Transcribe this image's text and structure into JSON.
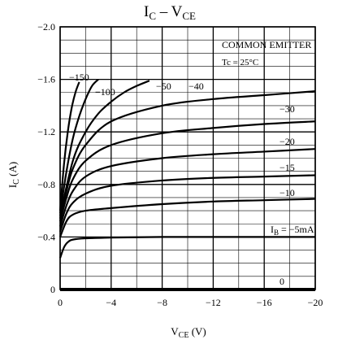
{
  "chart_data": {
    "type": "line",
    "title": "IC – VCE",
    "xlabel": "VCE (V)",
    "ylabel": "IC (A)",
    "xlim": [
      0,
      -20
    ],
    "ylim": [
      0,
      -2.0
    ],
    "x_ticks": [
      0,
      -4,
      -8,
      -12,
      -16,
      -20
    ],
    "x_tick_labels": [
      "0",
      "−4",
      "−8",
      "−12",
      "−16",
      "−20"
    ],
    "y_ticks": [
      -2.0,
      -1.6,
      -1.2,
      -0.8,
      -0.4,
      0
    ],
    "y_tick_labels": [
      "−2.0",
      "−1.6",
      "−1.2",
      "−0.8",
      "−0.4",
      "0"
    ],
    "grid": true,
    "annotations": {
      "box_line1": "COMMON EMITTER",
      "box_line2": "Tc = 25°C"
    },
    "series": [
      {
        "name": "IB = −5mA",
        "label": "IB = −5mA",
        "x": [
          0,
          -0.3,
          -0.6,
          -1.0,
          -2,
          -4,
          -8,
          -12,
          -16,
          -20
        ],
        "y": [
          -0.24,
          -0.32,
          -0.36,
          -0.38,
          -0.39,
          -0.395,
          -0.4,
          -0.4,
          -0.4,
          -0.4
        ]
      },
      {
        "name": "−10",
        "label": "−10",
        "x": [
          0,
          -0.5,
          -1,
          -2,
          -4,
          -8,
          -12,
          -16,
          -20
        ],
        "y": [
          -0.4,
          -0.52,
          -0.57,
          -0.6,
          -0.62,
          -0.65,
          -0.67,
          -0.68,
          -0.69
        ]
      },
      {
        "name": "−15",
        "label": "−15",
        "x": [
          0,
          -0.5,
          -1,
          -2,
          -4,
          -8,
          -12,
          -16,
          -20
        ],
        "y": [
          -0.44,
          -0.58,
          -0.66,
          -0.73,
          -0.79,
          -0.83,
          -0.85,
          -0.86,
          -0.87
        ]
      },
      {
        "name": "−20",
        "label": "−20",
        "x": [
          0,
          -0.5,
          -1,
          -2,
          -4,
          -8,
          -12,
          -16,
          -20
        ],
        "y": [
          -0.48,
          -0.64,
          -0.75,
          -0.86,
          -0.94,
          -1.0,
          -1.03,
          -1.05,
          -1.07
        ]
      },
      {
        "name": "−30",
        "label": "−30",
        "x": [
          0,
          -0.5,
          -1,
          -2,
          -4,
          -8,
          -12,
          -16,
          -20
        ],
        "y": [
          -0.52,
          -0.7,
          -0.84,
          -0.98,
          -1.1,
          -1.19,
          -1.23,
          -1.26,
          -1.28
        ]
      },
      {
        "name": "−40",
        "label": "−40",
        "x": [
          0,
          -0.5,
          -1,
          -2,
          -4,
          -8,
          -12,
          -16,
          -20
        ],
        "y": [
          -0.54,
          -0.75,
          -0.92,
          -1.1,
          -1.28,
          -1.4,
          -1.45,
          -1.48,
          -1.51
        ]
      },
      {
        "name": "−50",
        "label": "−50",
        "x": [
          0,
          -1,
          -2,
          -3,
          -4,
          -5,
          -6,
          -7
        ],
        "y": [
          -0.56,
          -0.98,
          -1.2,
          -1.34,
          -1.43,
          -1.5,
          -1.55,
          -1.59
        ]
      },
      {
        "name": "−100",
        "label": "−100",
        "x": [
          0,
          -0.5,
          -1,
          -1.5,
          -2,
          -2.5,
          -3
        ],
        "y": [
          -0.58,
          -0.9,
          -1.15,
          -1.32,
          -1.45,
          -1.55,
          -1.6
        ]
      },
      {
        "name": "−150",
        "label": "−150",
        "x": [
          0,
          -0.3,
          -0.6,
          -0.9,
          -1.2,
          -1.5
        ],
        "y": [
          -0.6,
          -0.95,
          -1.2,
          -1.38,
          -1.5,
          -1.58
        ]
      }
    ],
    "zero_curve_label": "0"
  }
}
